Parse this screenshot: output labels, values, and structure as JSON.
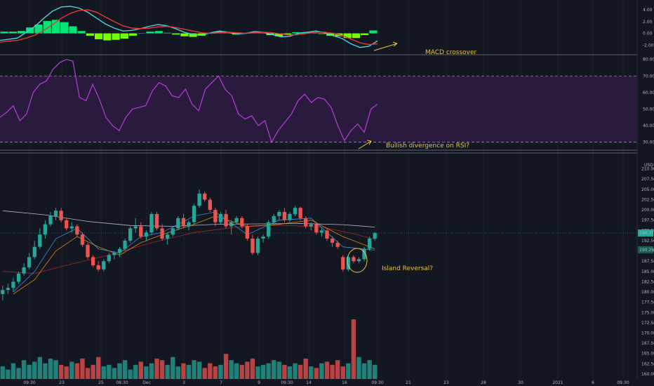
{
  "colors": {
    "background": "#131722",
    "grid": "#1e222d",
    "axis_text": "#b2b5be",
    "bull": "#26a69a",
    "bear": "#ef5350",
    "macd_line": "#4dd0e1",
    "signal_line": "#e53935",
    "hist_pos": "#00e676",
    "hist_neg": "#76ff03",
    "rsi_line": "#b23fd6",
    "rsi_band": "#2a1a3d",
    "annotation": "#e6c340",
    "ma_white": "#d1d4dc",
    "ma_red": "#c62828",
    "ma_orange": "#ff9800",
    "ma_blue": "#42a5f5",
    "separator": "#787b86"
  },
  "chart_data": [
    {
      "type": "line",
      "panel": "macd",
      "y_ticks": [
        "4.00",
        "2.00",
        "0.00",
        "-2.00"
      ],
      "ylim": [
        -3.4,
        5.2
      ],
      "series": [
        {
          "values": [
            -1.2,
            -1.0,
            -0.8,
            0.2,
            1.2,
            2.6,
            3.8,
            4.5,
            4.6,
            4.3,
            3.6,
            2.6,
            1.6,
            0.9,
            0.4,
            0.5,
            0.8,
            1.2,
            1.5,
            1.3,
            0.8,
            0.2,
            -0.2,
            -0.3,
            0.1,
            0.4,
            0.2,
            -0.1,
            0.0,
            0.3,
            0.2,
            -0.2,
            -0.6,
            -0.5,
            0.0,
            0.2,
            0.4,
            0.1,
            -0.4,
            -0.9,
            -1.8,
            -2.4,
            -2.2,
            -1.3
          ]
        },
        {
          "values": [
            -1.5,
            -1.3,
            -1.2,
            -0.8,
            -0.3,
            0.5,
            1.5,
            2.6,
            3.4,
            3.9,
            4.0,
            3.6,
            2.8,
            2.0,
            1.3,
            0.9,
            0.8,
            0.9,
            1.1,
            1.2,
            1.0,
            0.7,
            0.4,
            0.1,
            0.0,
            0.1,
            0.2,
            0.1,
            0.0,
            0.1,
            0.2,
            0.1,
            -0.1,
            -0.3,
            -0.2,
            0.0,
            0.2,
            0.2,
            0.0,
            -0.4,
            -1.0,
            -1.6,
            -1.9,
            -1.8
          ]
        }
      ],
      "histogram": [
        0.3,
        0.3,
        0.4,
        1.0,
        1.5,
        2.1,
        2.3,
        1.9,
        1.2,
        0.4,
        -0.4,
        -1.0,
        -1.2,
        -1.1,
        -0.9,
        -0.4,
        0.0,
        0.3,
        0.4,
        0.1,
        -0.2,
        -0.5,
        -0.6,
        -0.4,
        0.1,
        0.3,
        0.0,
        -0.2,
        0.0,
        0.2,
        0.0,
        -0.3,
        -0.5,
        -0.2,
        0.2,
        0.2,
        0.2,
        -0.1,
        -0.4,
        -0.5,
        -0.8,
        -0.8,
        -0.3,
        0.5
      ],
      "annotation": "MACD crossover"
    },
    {
      "type": "line",
      "panel": "rsi",
      "y_ticks": [
        "80.00",
        "70.00",
        "60.00",
        "50.00",
        "40.00",
        "30.00"
      ],
      "ylim": [
        26,
        82
      ],
      "band": [
        30,
        70
      ],
      "values": [
        45,
        48,
        52,
        43,
        47,
        60,
        65,
        67,
        74,
        78,
        80,
        79,
        57,
        55,
        65,
        56,
        45,
        40,
        37,
        45,
        50,
        51,
        52,
        61,
        66,
        64,
        58,
        57,
        62,
        53,
        49,
        62,
        66,
        70,
        62,
        58,
        47,
        44,
        46,
        40,
        43,
        30,
        37,
        42,
        47,
        55,
        59,
        54,
        57,
        56,
        51,
        40,
        31,
        37,
        41,
        36,
        50,
        53
      ],
      "annotation": "Bullish divergence on RSI?"
    },
    {
      "type": "candlestick",
      "panel": "price",
      "currency": "USD",
      "y_ticks": [
        "210.00",
        "207.50",
        "205.00",
        "202.50",
        "200.00",
        "197.50",
        "195.00",
        "192.50",
        "190.00",
        "187.50",
        "185.00",
        "182.50",
        "180.00",
        "177.50",
        "175.00",
        "172.50",
        "170.00",
        "167.50",
        "165.00",
        "162.50",
        "160.00"
      ],
      "ylim": [
        158.8,
        212.5
      ],
      "x_ticks": [
        "09:30",
        "23",
        "25",
        "08:30",
        "Dec",
        "3",
        "7",
        "9",
        "09:30",
        "14",
        "16",
        "09:30",
        "21",
        "23",
        "28",
        "30",
        "2021",
        "6",
        "09:30"
      ],
      "price_labels": [
        "194.37",
        "190.29"
      ],
      "ohlc": [
        [
          179.5,
          181.5,
          178.0,
          180.5
        ],
        [
          180.5,
          182.0,
          179.5,
          181.0
        ],
        [
          181.0,
          183.5,
          180.0,
          182.5
        ],
        [
          182.5,
          185.0,
          182.0,
          184.5
        ],
        [
          184.5,
          187.0,
          184.0,
          186.0
        ],
        [
          186.0,
          189.5,
          185.5,
          188.5
        ],
        [
          188.5,
          192.5,
          188.0,
          191.0
        ],
        [
          191.0,
          195.5,
          190.5,
          194.0
        ],
        [
          194.0,
          197.5,
          193.0,
          196.5
        ],
        [
          196.5,
          199.5,
          196.0,
          198.5
        ],
        [
          198.5,
          200.5,
          197.5,
          199.8
        ],
        [
          199.8,
          200.5,
          197.0,
          197.5
        ],
        [
          197.5,
          198.0,
          195.0,
          195.5
        ],
        [
          195.5,
          197.0,
          194.5,
          196.0
        ],
        [
          196.0,
          196.5,
          193.5,
          194.0
        ],
        [
          194.0,
          194.5,
          191.0,
          191.5
        ],
        [
          191.5,
          192.0,
          188.0,
          188.5
        ],
        [
          188.5,
          189.0,
          186.0,
          186.5
        ],
        [
          186.5,
          187.5,
          185.0,
          185.5
        ],
        [
          185.5,
          188.0,
          185.0,
          187.5
        ],
        [
          187.5,
          189.5,
          187.0,
          189.0
        ],
        [
          189.0,
          190.0,
          188.0,
          189.5
        ],
        [
          189.5,
          191.0,
          188.5,
          190.5
        ],
        [
          190.5,
          193.0,
          190.0,
          192.5
        ],
        [
          192.5,
          196.0,
          192.0,
          195.5
        ],
        [
          195.5,
          198.0,
          194.5,
          196.0
        ],
        [
          196.0,
          197.0,
          193.0,
          193.5
        ],
        [
          193.5,
          195.0,
          192.5,
          194.5
        ],
        [
          194.5,
          199.5,
          194.0,
          199.0
        ],
        [
          199.0,
          199.5,
          195.0,
          195.5
        ],
        [
          195.5,
          196.5,
          192.5,
          193.0
        ],
        [
          193.0,
          194.5,
          191.5,
          194.0
        ],
        [
          194.0,
          196.0,
          193.5,
          195.5
        ],
        [
          195.5,
          198.5,
          195.0,
          198.0
        ],
        [
          198.0,
          199.0,
          195.5,
          196.0
        ],
        [
          196.0,
          197.5,
          195.0,
          197.0
        ],
        [
          197.0,
          201.5,
          196.5,
          201.0
        ],
        [
          201.0,
          205.0,
          200.5,
          204.0
        ],
        [
          204.0,
          204.5,
          202.0,
          202.5
        ],
        [
          202.5,
          203.0,
          199.5,
          200.0
        ],
        [
          200.0,
          200.5,
          196.0,
          197.0
        ],
        [
          197.0,
          199.5,
          196.5,
          199.0
        ],
        [
          199.0,
          200.0,
          195.5,
          196.0
        ],
        [
          196.0,
          197.5,
          194.0,
          197.0
        ],
        [
          197.0,
          198.5,
          196.5,
          198.0
        ],
        [
          198.0,
          198.5,
          195.5,
          196.0
        ],
        [
          196.0,
          196.5,
          192.5,
          193.0
        ],
        [
          193.0,
          194.0,
          189.0,
          189.5
        ],
        [
          189.5,
          193.5,
          189.0,
          193.0
        ],
        [
          193.0,
          194.0,
          192.0,
          193.5
        ],
        [
          193.5,
          197.5,
          193.0,
          197.0
        ],
        [
          197.0,
          199.0,
          196.5,
          198.5
        ],
        [
          198.5,
          200.0,
          197.5,
          199.5
        ],
        [
          199.5,
          200.5,
          197.0,
          197.5
        ],
        [
          197.5,
          199.5,
          197.0,
          199.0
        ],
        [
          199.0,
          201.0,
          198.5,
          200.5
        ],
        [
          200.5,
          200.8,
          197.5,
          198.0
        ],
        [
          198.0,
          198.5,
          195.5,
          196.0
        ],
        [
          196.0,
          197.0,
          195.0,
          196.5
        ],
        [
          196.5,
          197.0,
          194.0,
          194.5
        ],
        [
          194.5,
          195.5,
          193.5,
          195.0
        ],
        [
          195.0,
          195.5,
          192.5,
          193.0
        ],
        [
          193.0,
          193.5,
          191.0,
          192.0
        ],
        [
          192.0,
          192.5,
          190.5,
          191.0
        ],
        [
          188.5,
          189.0,
          185.0,
          185.5
        ],
        [
          185.5,
          189.0,
          185.0,
          188.5
        ],
        [
          188.5,
          189.0,
          187.0,
          187.5
        ],
        [
          187.5,
          188.5,
          187.0,
          188.0
        ],
        [
          188.0,
          191.0,
          187.5,
          190.5
        ],
        [
          190.5,
          193.5,
          190.0,
          193.0
        ],
        [
          193.0,
          194.6,
          192.5,
          194.37
        ]
      ],
      "moving_averages": [
        {
          "values": [
            [
              0,
              199.8
            ],
            [
              8,
              198.8
            ],
            [
              16,
              197.2
            ],
            [
              24,
              196.2
            ],
            [
              32,
              196.0
            ],
            [
              40,
              196.5
            ],
            [
              48,
              196.6
            ],
            [
              56,
              196.7
            ],
            [
              64,
              196.4
            ],
            [
              70,
              195.8
            ]
          ]
        },
        {
          "values": [
            [
              0,
              185.0
            ],
            [
              6,
              184.5
            ],
            [
              12,
              186.5
            ],
            [
              20,
              189.0
            ],
            [
              28,
              192.0
            ],
            [
              36,
              194.5
            ],
            [
              44,
              195.8
            ],
            [
              52,
              196.3
            ],
            [
              60,
              195.8
            ],
            [
              66,
              194.2
            ],
            [
              70,
              192.8
            ]
          ]
        },
        {
          "values": [
            [
              2,
              179.5
            ],
            [
              6,
              183.0
            ],
            [
              10,
              190.0
            ],
            [
              14,
              193.5
            ],
            [
              18,
              191.0
            ],
            [
              22,
              189.0
            ],
            [
              26,
              192.0
            ],
            [
              30,
              194.0
            ],
            [
              36,
              196.5
            ],
            [
              40,
              198.5
            ],
            [
              46,
              196.0
            ],
            [
              52,
              196.5
            ],
            [
              58,
              197.5
            ],
            [
              64,
              193.5
            ],
            [
              70,
              190.5
            ]
          ]
        },
        {
          "values": [
            [
              2,
              180.0
            ],
            [
              6,
              185.0
            ],
            [
              10,
              193.0
            ],
            [
              14,
              195.5
            ],
            [
              18,
              190.5
            ],
            [
              22,
              189.5
            ],
            [
              26,
              193.5
            ],
            [
              30,
              194.5
            ],
            [
              36,
              198.5
            ],
            [
              40,
              199.5
            ],
            [
              46,
              194.0
            ],
            [
              52,
              197.5
            ],
            [
              58,
              198.0
            ],
            [
              64,
              191.0
            ],
            [
              70,
              190.2
            ]
          ]
        }
      ],
      "annotation": "Island Reversal?"
    },
    {
      "type": "bar",
      "panel": "volume",
      "values": [
        8,
        6,
        10,
        7,
        12,
        9,
        11,
        14,
        10,
        13,
        12,
        9,
        8,
        11,
        10,
        13,
        7,
        9,
        14,
        8,
        9,
        7,
        10,
        12,
        6,
        9,
        11,
        8,
        10,
        13,
        12,
        9,
        14,
        8,
        10,
        9,
        12,
        11,
        7,
        10,
        8,
        9,
        16,
        12,
        10,
        9,
        11,
        13,
        8,
        9,
        10,
        12,
        11,
        9,
        8,
        10,
        9,
        13,
        8,
        7,
        10,
        11,
        9,
        12,
        8,
        10,
        38,
        14,
        10,
        12,
        9
      ]
    }
  ]
}
